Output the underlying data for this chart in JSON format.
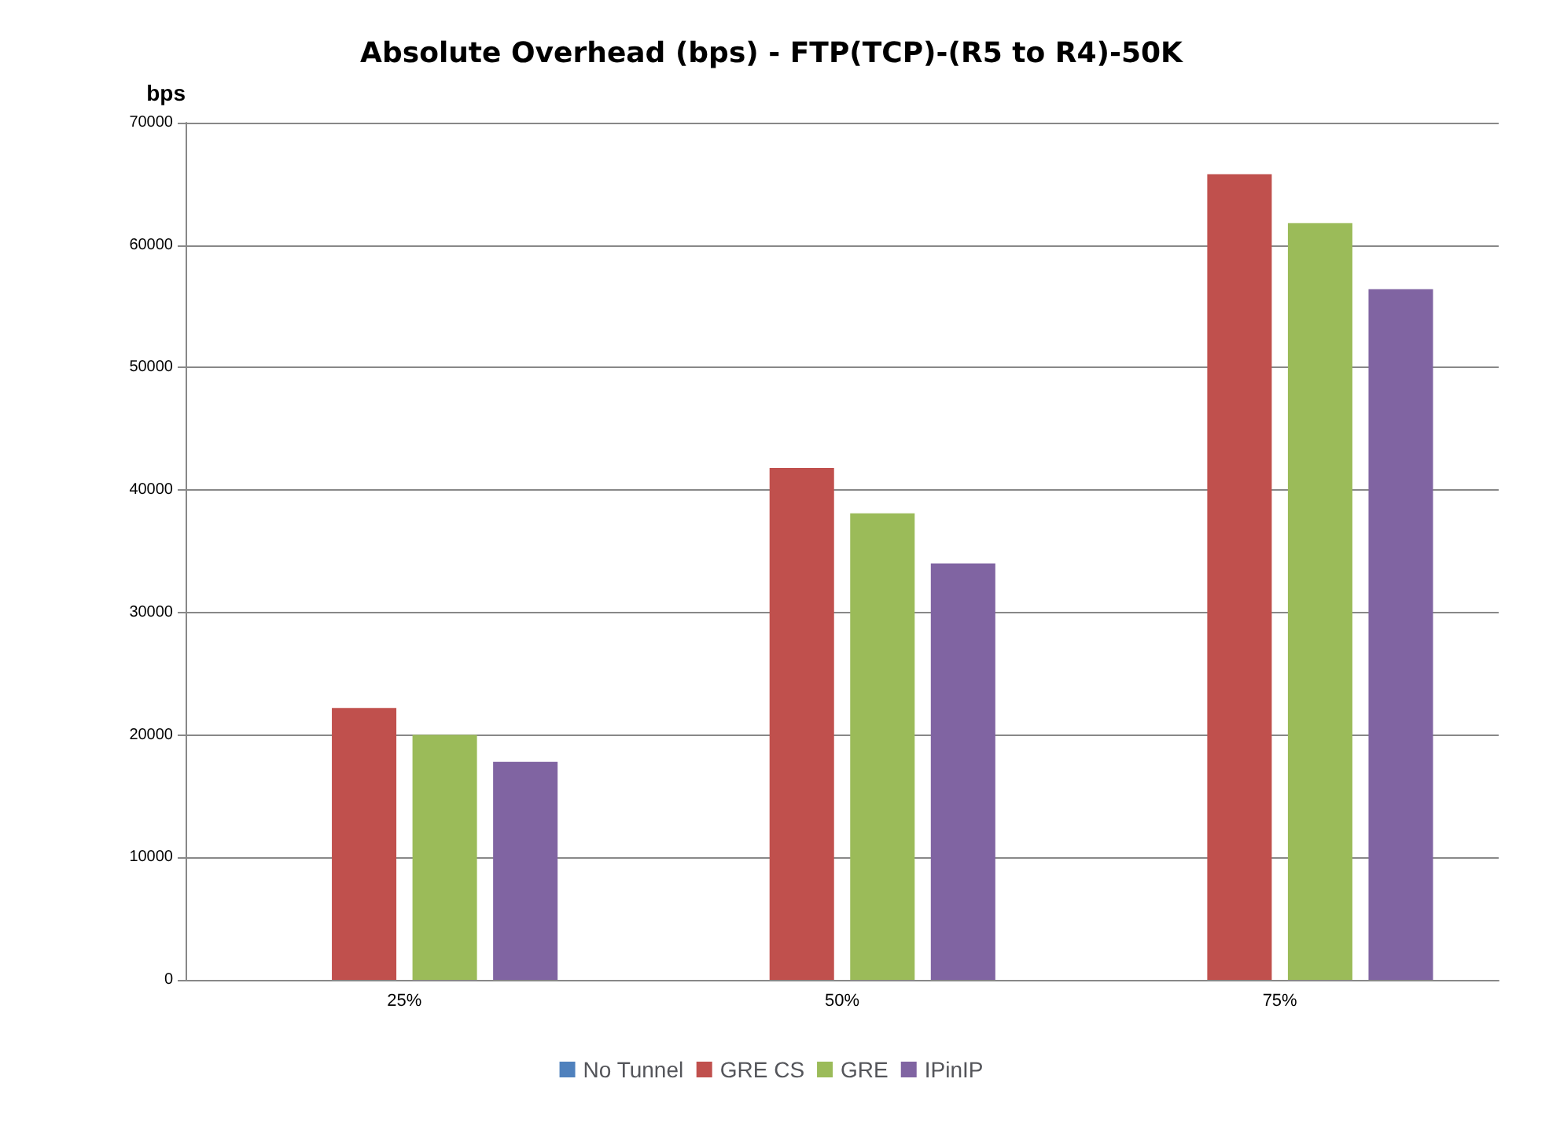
{
  "chart_data": {
    "type": "bar",
    "title": "Absolute Overhead (bps) - FTP(TCP)-(R5 to R4)-50K",
    "ylabel": "bps",
    "categories": [
      "25%",
      "50%",
      "75%"
    ],
    "series": [
      {
        "name": "No Tunnel",
        "color": "#4f81bd",
        "values": [
          0,
          0,
          0
        ]
      },
      {
        "name": "GRE CS",
        "color": "#c0504d",
        "values": [
          22200,
          41800,
          65800
        ]
      },
      {
        "name": "GRE",
        "color": "#9bbb59",
        "values": [
          20000,
          38100,
          61800
        ]
      },
      {
        "name": "IPinIP",
        "color": "#8064a2",
        "values": [
          17800,
          34000,
          56400
        ]
      }
    ],
    "ylim": [
      0,
      70000
    ],
    "yticks": [
      0,
      10000,
      20000,
      30000,
      40000,
      50000,
      60000,
      70000
    ],
    "grid": "y",
    "legend": "bottom"
  }
}
